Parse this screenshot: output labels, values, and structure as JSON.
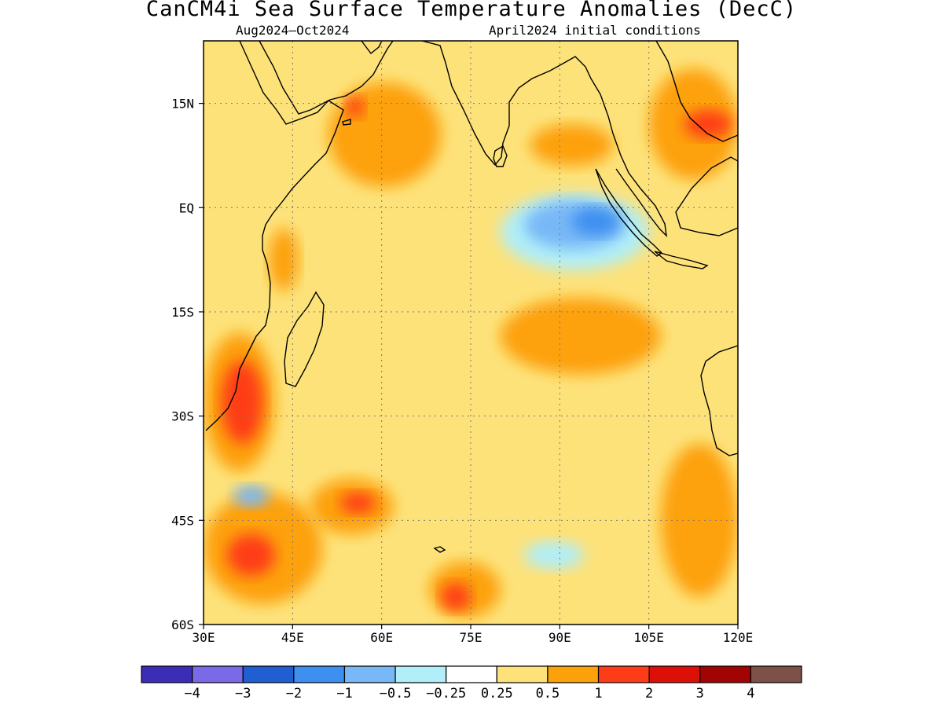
{
  "title": "CanCM4i Sea Surface Temperature Anomalies (DecC)",
  "subtitle_left": "Aug2024–Oct2024",
  "subtitle_right": "April2024 initial conditions",
  "map": {
    "lon_range": [
      30,
      120
    ],
    "lat_range": [
      -60,
      24
    ],
    "lon_ticks": [
      {
        "value": 30,
        "label": "30E"
      },
      {
        "value": 45,
        "label": "45E"
      },
      {
        "value": 60,
        "label": "60E"
      },
      {
        "value": 75,
        "label": "75E"
      },
      {
        "value": 90,
        "label": "90E"
      },
      {
        "value": 105,
        "label": "105E"
      },
      {
        "value": 120,
        "label": "120E"
      }
    ],
    "lat_ticks": [
      {
        "value": 15,
        "label": "15N"
      },
      {
        "value": 0,
        "label": "EQ"
      },
      {
        "value": -15,
        "label": "15S"
      },
      {
        "value": -30,
        "label": "30S"
      },
      {
        "value": -45,
        "label": "45S"
      },
      {
        "value": -60,
        "label": "60S"
      }
    ],
    "grid": "dotted"
  },
  "colorbar": {
    "colors": [
      "#3c2db8",
      "#7b6ae8",
      "#1f5fd1",
      "#3d8ff0",
      "#78b8f7",
      "#b0eef8",
      "#ffffff",
      "#fde27a",
      "#fda10a",
      "#fe3d18",
      "#dd1008",
      "#a20404",
      "#7b5148"
    ],
    "labels": [
      "−4",
      "−3",
      "−2",
      "−1",
      "−0.5",
      "−0.25",
      "0.25",
      "0.5",
      "1",
      "2",
      "3",
      "4"
    ]
  },
  "anomaly_regions": [
    {
      "level": "0.25",
      "color": "#fde27a",
      "lon": [
        30,
        120
      ],
      "lat": [
        -60,
        24
      ]
    },
    {
      "level": "0.5",
      "color": "#fda10a",
      "lon": [
        51,
        70
      ],
      "lat": [
        3,
        18
      ]
    },
    {
      "level": "0.5",
      "color": "#fda10a",
      "lon": [
        85,
        99
      ],
      "lat": [
        6,
        12
      ]
    },
    {
      "level": "0.5",
      "color": "#fda10a",
      "lon": [
        105,
        120
      ],
      "lat": [
        4,
        20
      ]
    },
    {
      "level": "0.5",
      "color": "#fda10a",
      "lon": [
        41,
        46
      ],
      "lat": [
        -12,
        -3
      ]
    },
    {
      "level": "0.5",
      "color": "#fda10a",
      "lon": [
        30,
        42
      ],
      "lat": [
        -38,
        -18
      ]
    },
    {
      "level": "0.5",
      "color": "#fda10a",
      "lon": [
        80,
        107
      ],
      "lat": [
        -24,
        -13
      ]
    },
    {
      "level": "0.5",
      "color": "#fda10a",
      "lon": [
        30,
        50
      ],
      "lat": [
        -57,
        -41
      ]
    },
    {
      "level": "0.5",
      "color": "#fda10a",
      "lon": [
        48,
        62
      ],
      "lat": [
        -47,
        -39
      ]
    },
    {
      "level": "0.5",
      "color": "#fda10a",
      "lon": [
        68,
        80
      ],
      "lat": [
        -59,
        -51
      ]
    },
    {
      "level": "0.5",
      "color": "#fda10a",
      "lon": [
        107,
        120
      ],
      "lat": [
        -56,
        -34
      ]
    },
    {
      "level": "1",
      "color": "#fe3d18",
      "lon": [
        54,
        57
      ],
      "lat": [
        13,
        16
      ]
    },
    {
      "level": "1",
      "color": "#fe3d18",
      "lon": [
        111,
        119
      ],
      "lat": [
        10,
        14
      ]
    },
    {
      "level": "1",
      "color": "#fe3d18",
      "lon": [
        33,
        40
      ],
      "lat": [
        -34,
        -22
      ]
    },
    {
      "level": "1",
      "color": "#fe3d18",
      "lon": [
        34,
        42
      ],
      "lat": [
        -53,
        -47
      ]
    },
    {
      "level": "1",
      "color": "#fe3d18",
      "lon": [
        53,
        59
      ],
      "lat": [
        -44,
        -41
      ]
    },
    {
      "level": "1",
      "color": "#fe3d18",
      "lon": [
        70,
        75
      ],
      "lat": [
        -58,
        -54
      ]
    },
    {
      "level": "-0.25",
      "color": "#b0eef8",
      "lon": [
        80,
        105
      ],
      "lat": [
        -9,
        2
      ]
    },
    {
      "level": "-0.5",
      "color": "#78b8f7",
      "lon": [
        84,
        101
      ],
      "lat": [
        -6,
        1
      ]
    },
    {
      "level": "-1",
      "color": "#3d8ff0",
      "lon": [
        92,
        100
      ],
      "lat": [
        -4,
        0
      ]
    },
    {
      "level": "-0.25",
      "color": "#b0eef8",
      "lon": [
        84,
        94
      ],
      "lat": [
        -52,
        -48
      ]
    },
    {
      "level": "-0.5",
      "color": "#78b8f7",
      "lon": [
        35,
        41
      ],
      "lat": [
        -43,
        -40
      ]
    }
  ]
}
